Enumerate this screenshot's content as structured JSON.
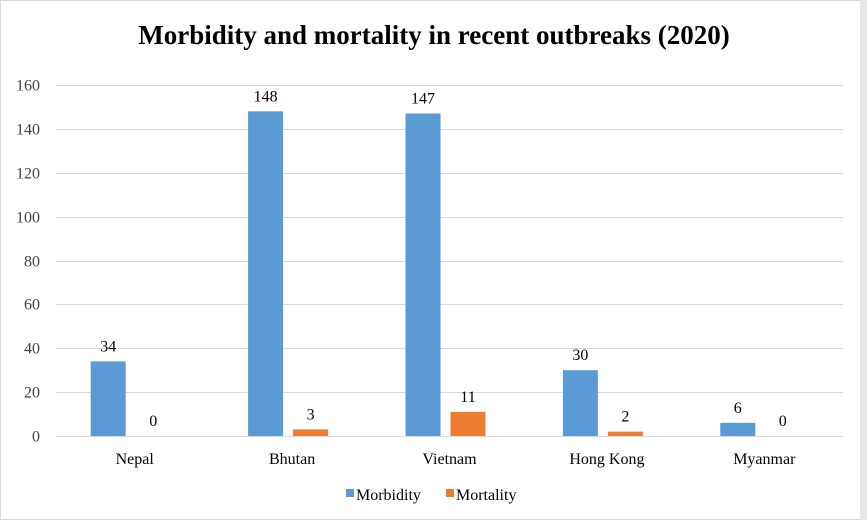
{
  "chart_data": {
    "type": "bar",
    "title": "Morbidity and mortality in recent outbreaks (2020)",
    "xlabel": "",
    "ylabel": "",
    "categories": [
      "Nepal",
      "Bhutan",
      "Vietnam",
      "Hong Kong",
      "Myanmar"
    ],
    "series": [
      {
        "name": "Morbidity",
        "color": "#5b9bd5",
        "values": [
          34,
          148,
          147,
          30,
          6
        ]
      },
      {
        "name": "Mortality",
        "color": "#ed7d31",
        "values": [
          0,
          3,
          11,
          2,
          0
        ]
      }
    ],
    "ylim": [
      0,
      160
    ],
    "yticks": [
      0,
      20,
      40,
      60,
      80,
      100,
      120,
      140,
      160
    ],
    "grid": true,
    "legend": "bottom",
    "data_labels": true
  }
}
